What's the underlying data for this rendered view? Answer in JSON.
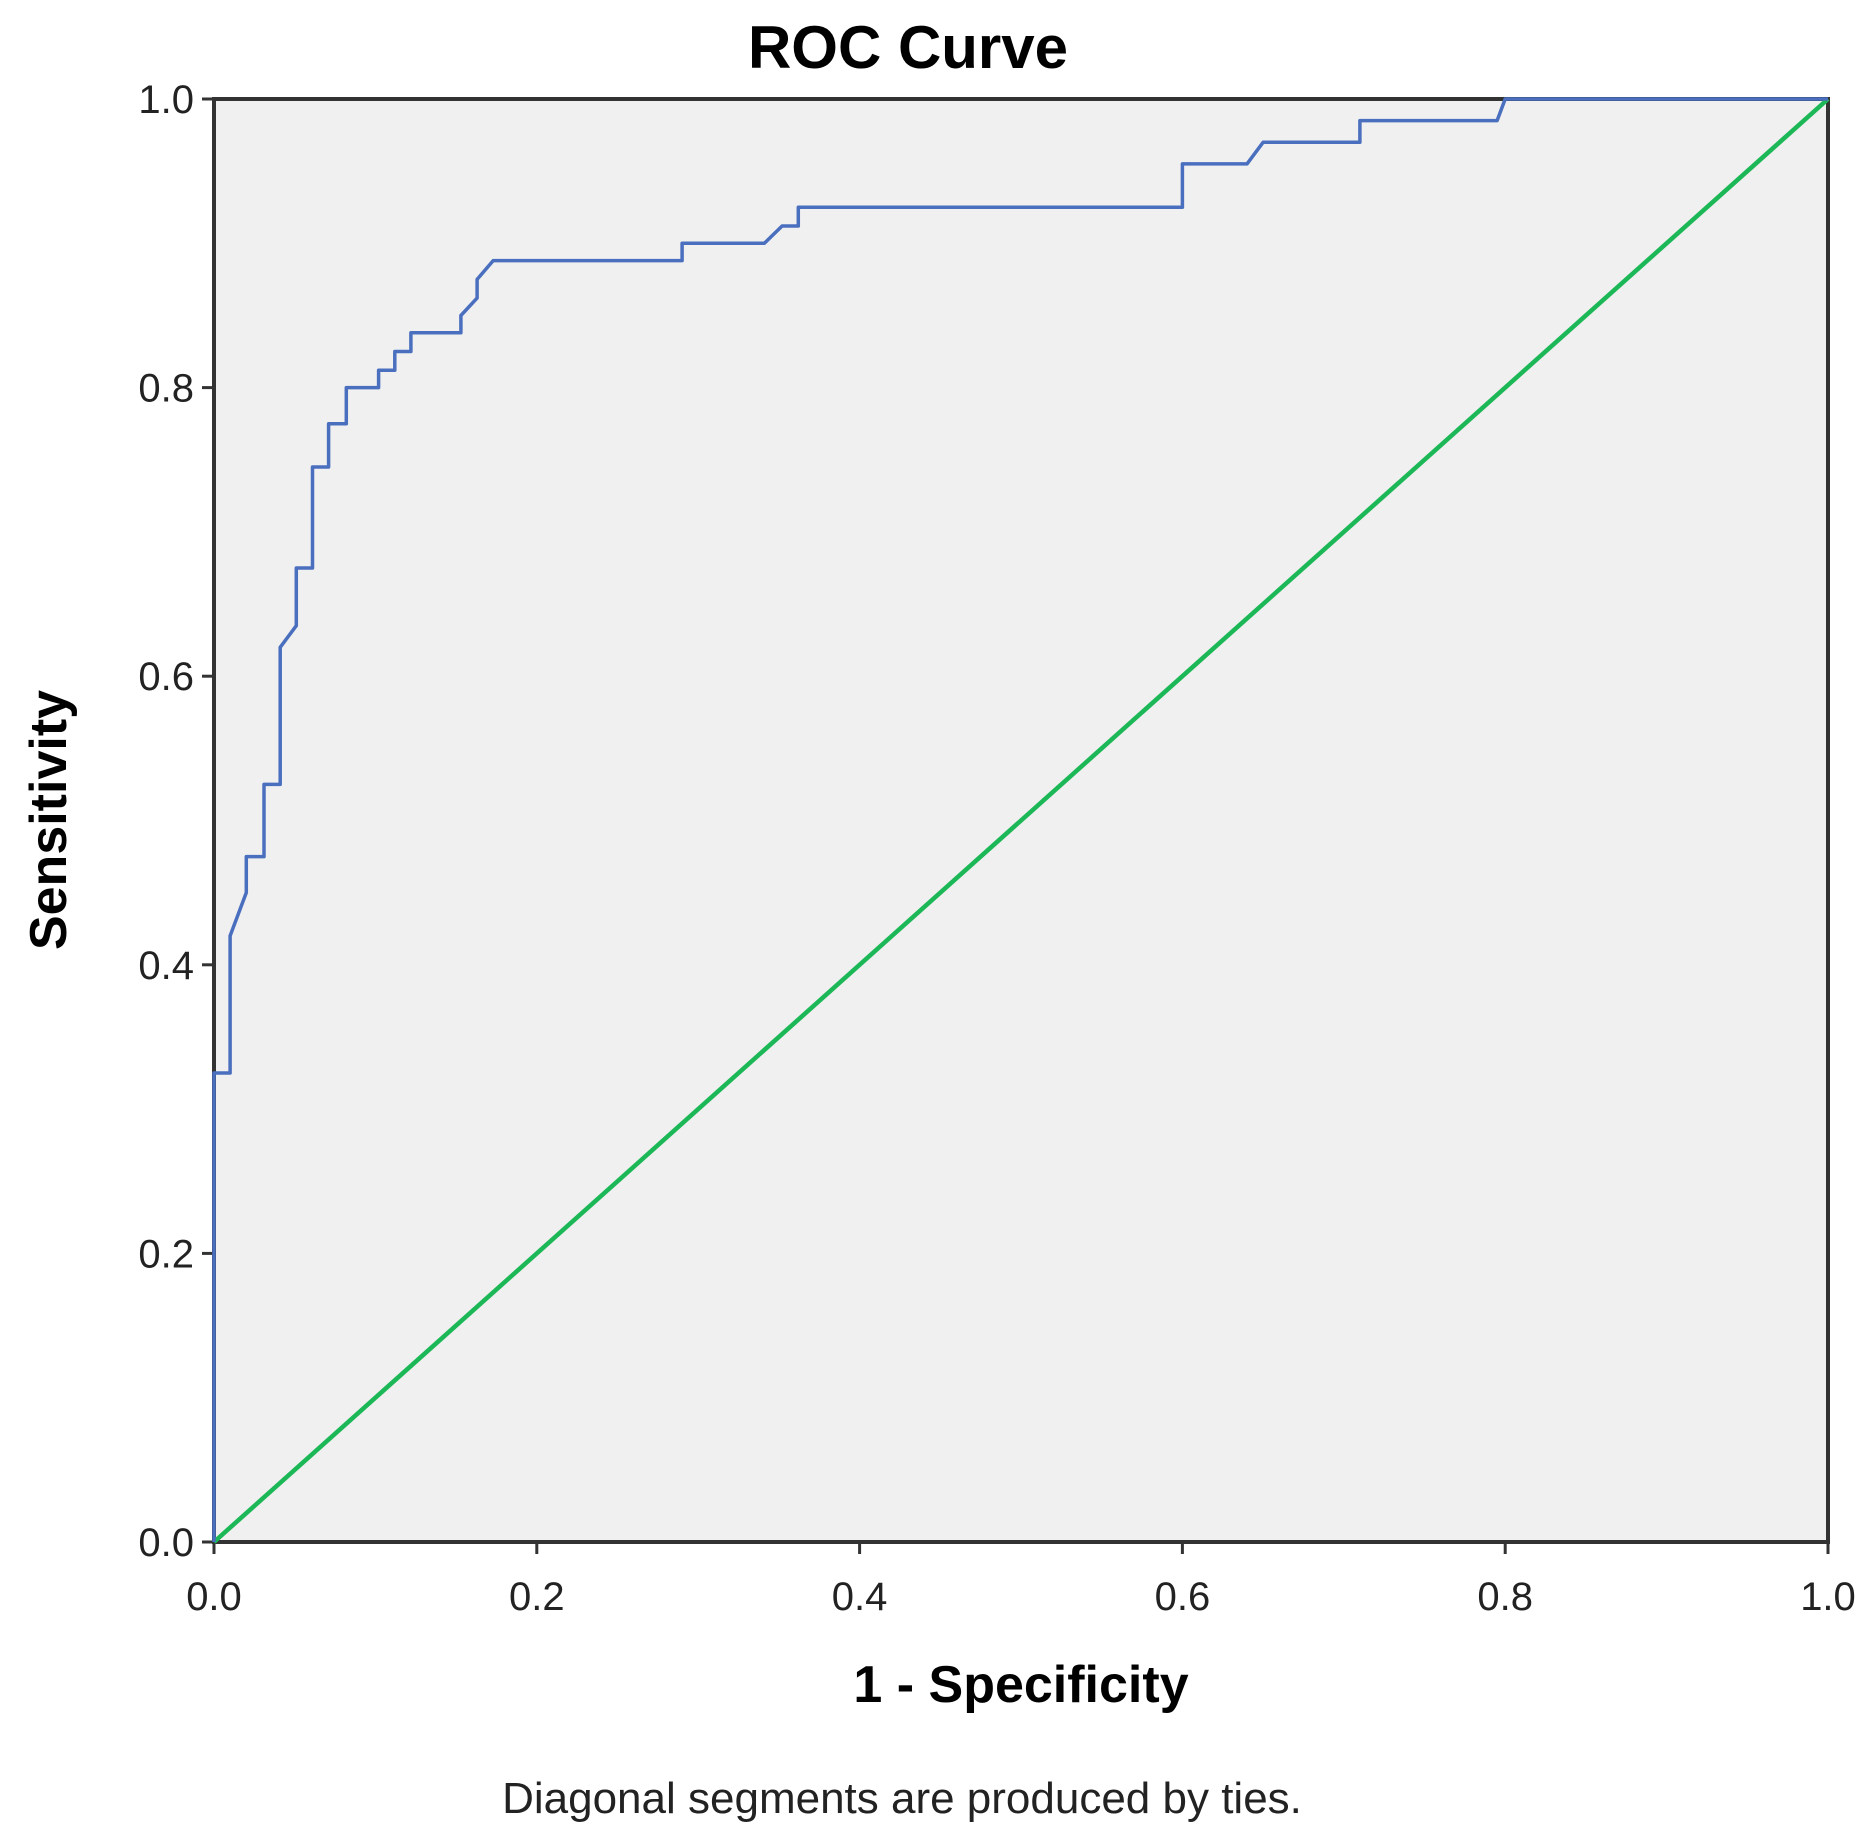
{
  "chart_data": {
    "type": "line",
    "title": "ROC Curve",
    "xlabel": "1 - Specificity",
    "ylabel": "Sensitivity",
    "footnote": "Diagonal segments are produced by ties.",
    "xlim": [
      0,
      1
    ],
    "ylim": [
      0,
      1
    ],
    "xticks": [
      "0.0",
      "0.2",
      "0.4",
      "0.6",
      "0.8",
      "1.0"
    ],
    "yticks": [
      "0.0",
      "0.2",
      "0.4",
      "0.6",
      "0.8",
      "1.0"
    ],
    "grid": false,
    "legend": "none",
    "colors": {
      "plot_background": "#f0f0f0",
      "frame": "#333333",
      "roc_curve": "#4a6fbf",
      "reference_line": "#1cb857"
    },
    "series": [
      {
        "x": [
          0.0,
          0.0,
          0.01,
          0.01,
          0.02,
          0.02,
          0.031,
          0.031,
          0.041,
          0.041,
          0.051,
          0.051,
          0.061,
          0.061,
          0.071,
          0.071,
          0.082,
          0.082,
          0.102,
          0.102,
          0.112,
          0.112,
          0.122,
          0.122,
          0.153,
          0.153,
          0.163,
          0.163,
          0.173,
          0.29,
          0.29,
          0.341,
          0.352,
          0.362,
          0.362,
          0.6,
          0.6,
          0.64,
          0.65,
          0.71,
          0.71,
          0.795,
          0.8,
          1.0
        ],
        "y": [
          0.0,
          0.325,
          0.325,
          0.42,
          0.45,
          0.475,
          0.475,
          0.525,
          0.525,
          0.62,
          0.635,
          0.675,
          0.675,
          0.745,
          0.745,
          0.775,
          0.775,
          0.8,
          0.8,
          0.812,
          0.812,
          0.825,
          0.825,
          0.838,
          0.838,
          0.85,
          0.862,
          0.875,
          0.888,
          0.888,
          0.9,
          0.9,
          0.912,
          0.912,
          0.925,
          0.925,
          0.955,
          0.955,
          0.97,
          0.97,
          0.985,
          0.985,
          1.0,
          1.0
        ],
        "color": "#4a6fbf"
      },
      {
        "x": [
          0.0,
          1.0
        ],
        "y": [
          0.0,
          1.0
        ],
        "color": "#1cb857"
      }
    ]
  }
}
